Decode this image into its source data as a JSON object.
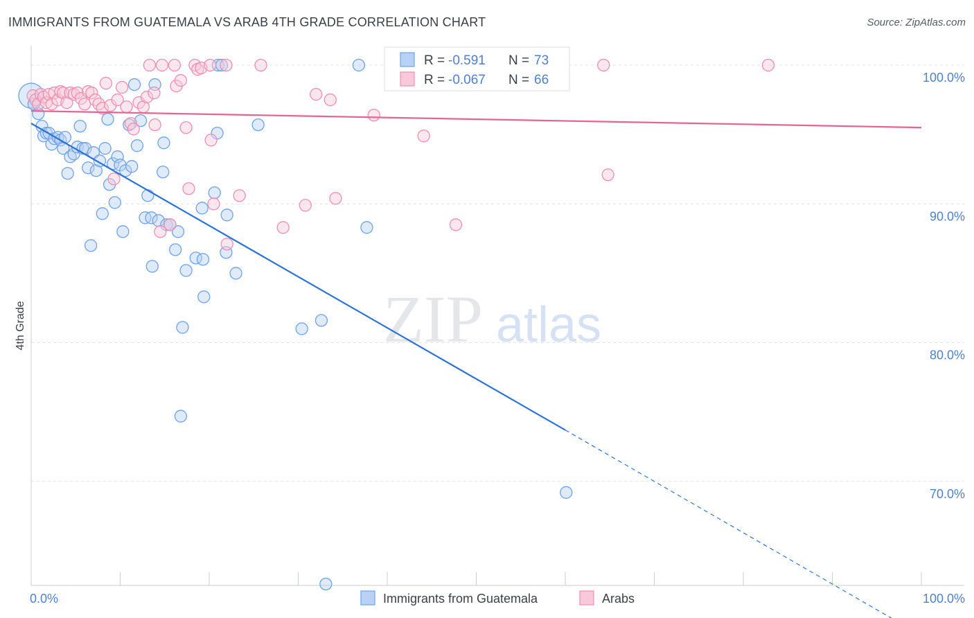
{
  "title": "IMMIGRANTS FROM GUATEMALA VS ARAB 4TH GRADE CORRELATION CHART",
  "source": "Source: ZipAtlas.com",
  "watermark": {
    "zip": "ZIP",
    "atlas": "atlas"
  },
  "colors": {
    "blue": "#6fa3e6",
    "blue_line": "#2b74d6",
    "blue_fill": "#b9d1f5",
    "pink": "#ee8fb0",
    "pink_line": "#e56592",
    "pink_fill": "#f9c9d9",
    "axis_text": "#4f7fcf",
    "grid": "#dfe3ea"
  },
  "legend_stats": [
    {
      "r_label": "R = ",
      "r_value": "-0.591",
      "n_label": "N = ",
      "n_value": "73",
      "color": "blue"
    },
    {
      "r_label": "R = ",
      "r_value": "-0.067",
      "n_label": "N = ",
      "n_value": "66",
      "color": "pink"
    }
  ],
  "chart_data": {
    "type": "scatter",
    "title": "IMMIGRANTS FROM GUATEMALA VS ARAB 4TH GRADE CORRELATION CHART",
    "xlabel": "",
    "ylabel": "4th Grade",
    "xlim": [
      0,
      100
    ],
    "ylim": [
      62.5,
      100.8
    ],
    "x_tick_labels": [
      "0.0%",
      "100.0%"
    ],
    "y_ticks": [
      70,
      80,
      90,
      100
    ],
    "y_tick_labels": [
      "70.0%",
      "80.0%",
      "90.0%",
      "100.0%"
    ],
    "grid": true,
    "legend_position": "bottom",
    "series": [
      {
        "name": "Immigrants from Guatemala",
        "color": "blue",
        "trend": {
          "x": [
            0,
            60
          ],
          "y": [
            95.8,
            73.7
          ],
          "dashed_to": [
            100,
            58.9
          ]
        },
        "points": [
          [
            0,
            97.8
          ],
          [
            0.3,
            97.2
          ],
          [
            0.8,
            96.5
          ],
          [
            1.2,
            95.6
          ],
          [
            1.4,
            94.9
          ],
          [
            1.7,
            95.1
          ],
          [
            2,
            95.1
          ],
          [
            2.3,
            94.3
          ],
          [
            2.6,
            94.7
          ],
          [
            3,
            94.8
          ],
          [
            3.3,
            94.6
          ],
          [
            3.6,
            94.0
          ],
          [
            3.8,
            94.8
          ],
          [
            4.1,
            92.2
          ],
          [
            4.4,
            93.4
          ],
          [
            4.8,
            93.6
          ],
          [
            5.2,
            94.1
          ],
          [
            5.5,
            95.6
          ],
          [
            5.8,
            94.0
          ],
          [
            6.1,
            94.0
          ],
          [
            6.4,
            92.6
          ],
          [
            6.7,
            87.0
          ],
          [
            7.0,
            93.7
          ],
          [
            7.3,
            92.4
          ],
          [
            7.7,
            93.1
          ],
          [
            8.0,
            89.3
          ],
          [
            8.3,
            94.0
          ],
          [
            8.6,
            96.1
          ],
          [
            8.8,
            91.4
          ],
          [
            9.2,
            92.9
          ],
          [
            9.4,
            90.1
          ],
          [
            9.7,
            93.4
          ],
          [
            10.0,
            92.8
          ],
          [
            10.3,
            88.0
          ],
          [
            10.6,
            92.4
          ],
          [
            11.0,
            95.7
          ],
          [
            11.3,
            92.7
          ],
          [
            11.6,
            98.6
          ],
          [
            11.9,
            94.2
          ],
          [
            12.3,
            96.0
          ],
          [
            12.8,
            89.0
          ],
          [
            13.1,
            90.6
          ],
          [
            13.5,
            89.0
          ],
          [
            13.6,
            85.5
          ],
          [
            13.9,
            98.6
          ],
          [
            14.3,
            88.8
          ],
          [
            14.8,
            92.3
          ],
          [
            14.9,
            94.4
          ],
          [
            15.2,
            88.5
          ],
          [
            15.6,
            88.5
          ],
          [
            16.2,
            86.7
          ],
          [
            16.5,
            88.0
          ],
          [
            16.8,
            74.7
          ],
          [
            17.0,
            81.1
          ],
          [
            17.4,
            85.2
          ],
          [
            18.5,
            86.1
          ],
          [
            19.2,
            89.7
          ],
          [
            19.3,
            86.0
          ],
          [
            19.4,
            83.3
          ],
          [
            20.6,
            90.8
          ],
          [
            20.9,
            95.1
          ],
          [
            21.0,
            100.0
          ],
          [
            21.4,
            100.0
          ],
          [
            21.9,
            86.5
          ],
          [
            22.0,
            89.2
          ],
          [
            23.0,
            85.0
          ],
          [
            25.5,
            95.7
          ],
          [
            30.4,
            81.0
          ],
          [
            32.6,
            81.6
          ],
          [
            33.1,
            62.6
          ],
          [
            36.8,
            100.0
          ],
          [
            37.7,
            88.3
          ],
          [
            60.1,
            69.2
          ]
        ]
      },
      {
        "name": "Arabs",
        "color": "pink",
        "trend": {
          "x": [
            0,
            100
          ],
          "y": [
            96.7,
            95.5
          ]
        },
        "points": [
          [
            0.2,
            97.8
          ],
          [
            0.5,
            97.5
          ],
          [
            0.8,
            97.2
          ],
          [
            1.1,
            97.9
          ],
          [
            1.4,
            97.7
          ],
          [
            1.7,
            97.3
          ],
          [
            2,
            97.9
          ],
          [
            2.3,
            97.2
          ],
          [
            2.6,
            98.0
          ],
          [
            3,
            97.5
          ],
          [
            3.3,
            98.1
          ],
          [
            3.6,
            98.0
          ],
          [
            4.0,
            97.3
          ],
          [
            4.4,
            98.0
          ],
          [
            4.8,
            97.9
          ],
          [
            5.2,
            98.0
          ],
          [
            5.6,
            97.6
          ],
          [
            6.0,
            97.2
          ],
          [
            6.4,
            98.1
          ],
          [
            6.8,
            98.0
          ],
          [
            7.2,
            97.5
          ],
          [
            7.6,
            97.2
          ],
          [
            8.0,
            96.9
          ],
          [
            8.4,
            98.7
          ],
          [
            8.9,
            97.1
          ],
          [
            9.3,
            91.8
          ],
          [
            9.7,
            97.5
          ],
          [
            10.2,
            98.4
          ],
          [
            10.7,
            97.0
          ],
          [
            11.2,
            95.8
          ],
          [
            11.5,
            95.4
          ],
          [
            12.1,
            97.3
          ],
          [
            12.6,
            97.0
          ],
          [
            13.0,
            97.7
          ],
          [
            13.3,
            100.0
          ],
          [
            13.8,
            98.0
          ],
          [
            13.9,
            95.7
          ],
          [
            14.5,
            88.0
          ],
          [
            14.7,
            100.0
          ],
          [
            15.6,
            88.5
          ],
          [
            16.1,
            100.0
          ],
          [
            16.3,
            98.5
          ],
          [
            16.8,
            98.9
          ],
          [
            17.4,
            95.5
          ],
          [
            17.7,
            91.1
          ],
          [
            18.4,
            100.0
          ],
          [
            18.7,
            99.7
          ],
          [
            19.1,
            99.8
          ],
          [
            20.1,
            100.0
          ],
          [
            20.2,
            94.6
          ],
          [
            20.5,
            90.0
          ],
          [
            21.9,
            100.0
          ],
          [
            22.0,
            87.1
          ],
          [
            23.4,
            90.6
          ],
          [
            25.8,
            100.0
          ],
          [
            28.3,
            88.3
          ],
          [
            30.8,
            89.9
          ],
          [
            32.0,
            97.9
          ],
          [
            33.6,
            97.5
          ],
          [
            34.2,
            90.4
          ],
          [
            38.5,
            96.4
          ],
          [
            44.1,
            94.9
          ],
          [
            47.7,
            88.5
          ],
          [
            64.3,
            100.0
          ],
          [
            64.8,
            92.1
          ],
          [
            82.8,
            100.0
          ]
        ]
      }
    ]
  }
}
